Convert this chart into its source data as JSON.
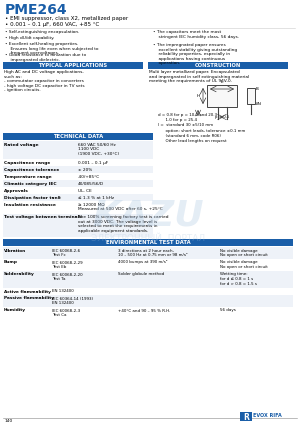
{
  "title": "PME264",
  "subtitle1": "• EMI suppressor, class X2, metallized paper",
  "subtitle2": "• 0.001 – 0.1 µF, 660 VAC, +85 °C",
  "title_color": "#1a5ea8",
  "header_bg": "#1a5ea8",
  "header_text_color": "#ffffff",
  "body_bg": "#ffffff",
  "features_left": [
    "Self-extinguishing encapsulation.",
    "High dU/dt capability.",
    "Excellent self-healing properties.\n    Ensures long life even when subjected to\n    frequent overvoltages.",
    "Good resistance to ionization due to\n    impregnated dielectric."
  ],
  "features_right": [
    "The capacitors meet the most\n    stringent IEC humidity class, 56 days.",
    "The impregnated paper ensures\n    excellent stability giving outstanding\n    reliability properties, especially in\n    applications having continuous\n    operation."
  ],
  "typical_apps_title": "TYPICAL APPLICATIONS",
  "typical_apps_text": "High AC and DC voltage applications,\nsuch as:\n- commutator capacitor in converters\n- high voltage DC capacitor in TV sets\n- ignition circuits.",
  "construction_title": "CONSTRUCTION",
  "construction_text": "Multi layer metallized paper. Encapsulated\nand impregnated in self extinguishing material\nmeeting the requirements of UL 94V-0.",
  "tech_data_title": "TECHNICAL DATA",
  "tech_data": [
    [
      "Rated voltage",
      "660 VAC 50/60 Hz\n1100 VDC\n(1900 VDC, +30°C)"
    ],
    [
      "Capacitance range",
      "0.001 – 0.1 µF"
    ],
    [
      "Capacitance tolerance",
      "± 20%"
    ],
    [
      "Temperature range",
      "-40/+85°C"
    ],
    [
      "Climatic category IEC",
      "40/085/56/D"
    ],
    [
      "Approvals",
      "UL, CE"
    ],
    [
      "Dissipation factor tanδ",
      "≤ 1.3 % at 1 kHz"
    ],
    [
      "Insulation resistance",
      "≥ 12000 MΩ\nMeasured at 500 VDC after 60 s, +25°C"
    ],
    [
      "Test voltage between terminals",
      "The 100% screening factory test is carried\nout at 3000 VDC. The voltage level is\nselected to meet the requirements in\napplicable equipment standards."
    ]
  ],
  "env_title": "ENVIRONMENTAL TEST DATA",
  "env_data": [
    [
      "Vibration",
      "IEC 60068-2-6\nTest Fc",
      "3 directions at 2 hour each,\n10 – 500 Hz at 0.75 mm or 98 m/s²",
      "No visible damage\nNo open or short circuit"
    ],
    [
      "Bump",
      "IEC 60068-2-29\nTest Eb",
      "4000 bumps at 390 m/s²",
      "No visible damage\nNo open or short circuit"
    ],
    [
      "Solderability",
      "IEC 60068-2-20\nTest Ta",
      "Solder globule method",
      "Wetting time:\nfor d ≤ 0.8 = 1 s\nfor d > 0.8 = 1.5 s"
    ],
    [
      "Active flammability",
      "EN 132400",
      "",
      ""
    ],
    [
      "Passive flammability",
      "IEC 60364-14 (1993)\nEN 132400",
      "",
      ""
    ],
    [
      "Humidity",
      "IEC 60068-2-3\nTest Ca",
      "+40°C and 90 – 95 % R.H.",
      "56 days"
    ]
  ],
  "dim_notes": [
    "d = 0.8 for p = 10.2 and 20.3",
    "      1.0 for p = 25.4",
    "l =  standard 30 ±5/10 mm",
    "      option: short leads, tolerance ±0.1 mm",
    "      (standard 6 mm, code R06)",
    "      Other lead lengths on request"
  ],
  "logo_text": "EVOX RIFA",
  "page_num": "140",
  "footer_color": "#1a5ea8",
  "watermark1": "KAZU",
  "watermark2": "ЭЛЕКТРОННЫЙ  ПОРТАЛ"
}
